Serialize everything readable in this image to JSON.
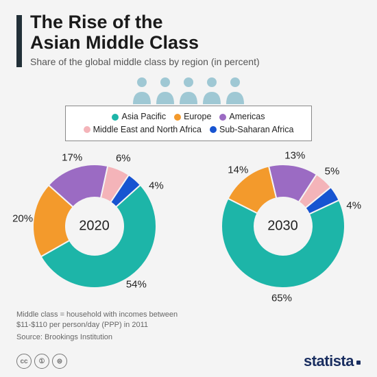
{
  "title": "The Rise of the\nAsian Middle Class",
  "subtitle": "Share of the global middle class by region (in percent)",
  "footnote": "Middle class = household with incomes between\n$11-$110 per person/day (PPP) in 2011",
  "source": "Source: Brookings Institution",
  "logo": "statista",
  "legend": [
    {
      "label": "Asia Pacific",
      "color": "#1db5a8"
    },
    {
      "label": "Europe",
      "color": "#f39a2c"
    },
    {
      "label": "Americas",
      "color": "#9b6bc3"
    },
    {
      "label": "Middle East and North Africa",
      "color": "#f4b4b9"
    },
    {
      "label": "Sub-Saharan Africa",
      "color": "#1754d1"
    }
  ],
  "people_color": "#9fc8d4",
  "charts": [
    {
      "year": "2020",
      "background": "#f4f4f4",
      "inner_radius": 42,
      "outer_radius": 90,
      "start_angle": 48,
      "slices": [
        {
          "value": 54,
          "color": "#1db5a8",
          "label": "54%",
          "label_r": 105
        },
        {
          "value": 20,
          "color": "#f39a2c",
          "label": "20%",
          "label_r": 105
        },
        {
          "value": 17,
          "color": "#9b6bc3",
          "label": "17%",
          "label_r": 105
        },
        {
          "value": 6,
          "color": "#f4b4b9",
          "label": "6%",
          "label_r": 108
        },
        {
          "value": 4,
          "color": "#1754d1",
          "label": "4%",
          "label_r": 108,
          "label_shift": 16
        }
      ]
    },
    {
      "year": "2030",
      "background": "#f4f4f4",
      "inner_radius": 42,
      "outer_radius": 90,
      "start_angle": 65,
      "slices": [
        {
          "value": 65,
          "color": "#1db5a8",
          "label": "65%",
          "label_r": 105
        },
        {
          "value": 14,
          "color": "#f39a2c",
          "label": "14%",
          "label_r": 105
        },
        {
          "value": 13,
          "color": "#9b6bc3",
          "label": "13%",
          "label_r": 105
        },
        {
          "value": 5,
          "color": "#f4b4b9",
          "label": "5%",
          "label_r": 108
        },
        {
          "value": 4,
          "color": "#1754d1",
          "label": "4%",
          "label_r": 108,
          "label_shift": 16
        }
      ]
    }
  ]
}
